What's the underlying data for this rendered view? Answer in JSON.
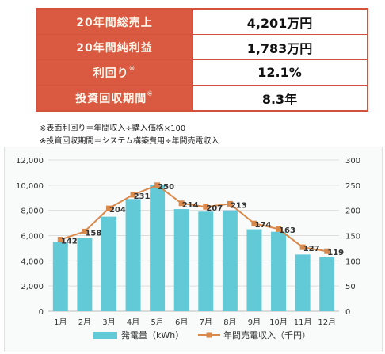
{
  "summary": {
    "rows": [
      {
        "label": "20年間総売上",
        "star": "",
        "value": "4,201万円"
      },
      {
        "label": "20年間純利益",
        "star": "",
        "value": "1,783万円"
      },
      {
        "label": "利回り",
        "star": "※",
        "value": "12.1%"
      },
      {
        "label": "投資回収期間",
        "star": "※",
        "value": "8.3年"
      }
    ],
    "notes": [
      "※表面利回り＝年間収入÷購入価格×100",
      "※投資回収期間＝システム構築費用÷年間売電収入"
    ]
  },
  "colors": {
    "header_fill": "#d95a40",
    "bar": "#62c9d7",
    "line": "#d9894b"
  },
  "chart_data": {
    "type": "bar",
    "categories": [
      "1月",
      "2月",
      "3月",
      "4月",
      "5月",
      "6月",
      "7月",
      "8月",
      "9月",
      "10月",
      "11月",
      "12月"
    ],
    "series": [
      {
        "name": "発電量（kWh）",
        "type": "bar",
        "axis": "left",
        "values": [
          5500,
          5800,
          7500,
          8900,
          10000,
          8100,
          7900,
          8000,
          6500,
          6300,
          4500,
          4300
        ]
      },
      {
        "name": "年間売電収入（千円）",
        "type": "line",
        "axis": "right",
        "values": [
          142,
          158,
          204,
          231,
          250,
          214,
          207,
          213,
          174,
          163,
          127,
          119
        ]
      }
    ],
    "ylim_left": [
      0,
      12000
    ],
    "ylim_right": [
      0,
      300
    ],
    "left_ticks": [
      "0",
      "2,000",
      "4,000",
      "6,000",
      "8,000",
      "10,000",
      "12,000"
    ],
    "right_ticks": [
      "0",
      "50",
      "100",
      "150",
      "200",
      "250",
      "300"
    ],
    "data_labels": [
      "142",
      "158",
      "204",
      "231",
      "250",
      "214",
      "207",
      "213",
      "174",
      "163",
      "127",
      "119"
    ],
    "grid": true,
    "legend": "bottom"
  }
}
